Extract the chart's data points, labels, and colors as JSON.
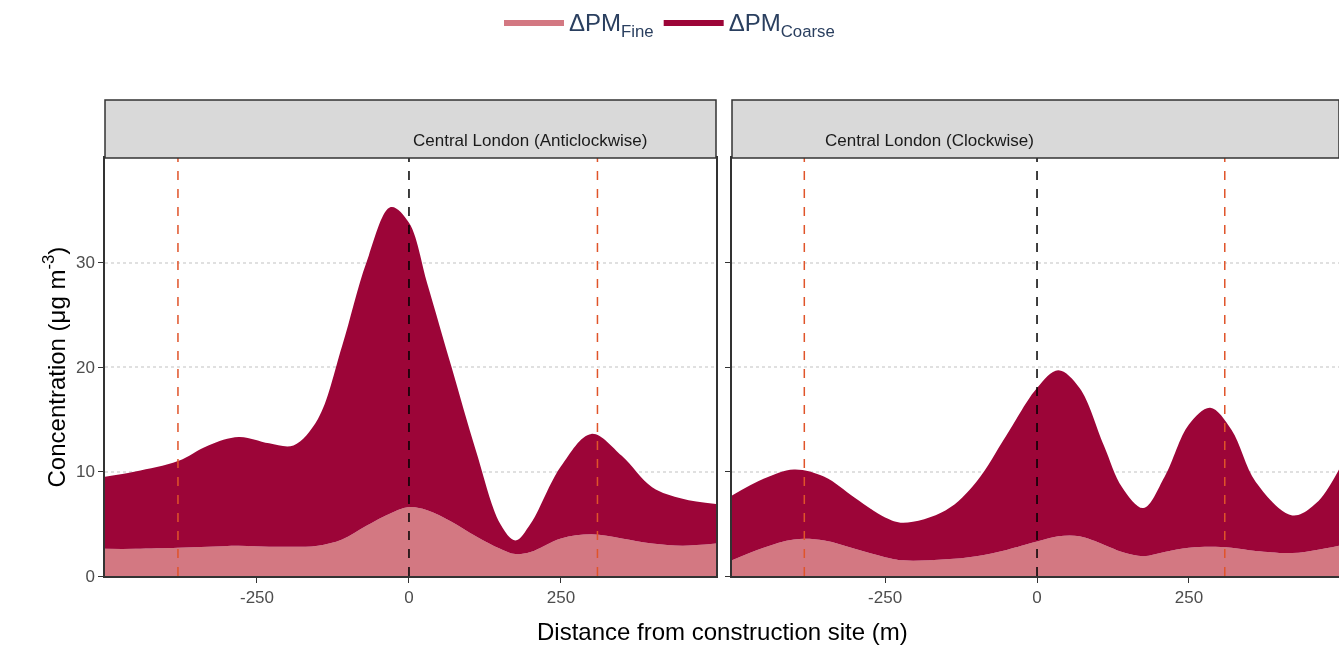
{
  "chart_data": [
    {
      "type": "area",
      "title": "Central London (Anticlockwise)",
      "xlabel": "Distance from construction site (m)",
      "ylabel": "Concentration (μg m$^{-3}$)",
      "stacked": true,
      "legend": "top",
      "grid": "y",
      "x": [
        -500,
        -450,
        -380,
        -330,
        -280,
        -230,
        -190,
        -150,
        -110,
        -70,
        -30,
        0,
        30,
        70,
        110,
        150,
        175,
        200,
        250,
        300,
        350,
        400,
        450,
        505
      ],
      "series": [
        {
          "name": "ΔPM$_{Fine}$",
          "color": "#d37882",
          "values": [
            2.6,
            2.6,
            2.7,
            2.8,
            2.9,
            2.8,
            2.8,
            2.9,
            3.5,
            4.8,
            6.0,
            6.6,
            6.3,
            5.2,
            3.8,
            2.6,
            2.1,
            2.3,
            3.6,
            4.0,
            3.6,
            3.1,
            2.9,
            3.1
          ]
        },
        {
          "name": "ΔPM$_{Coarse}$",
          "color": "#9c0538",
          "values": [
            6.9,
            7.4,
            8.3,
            9.7,
            10.4,
            9.9,
            9.7,
            12.1,
            18.5,
            25.2,
            29.3,
            27.2,
            21.7,
            14.8,
            8.2,
            2.4,
            1.3,
            2.7,
            6.9,
            9.6,
            7.9,
            5.4,
            4.5,
            3.8
          ]
        }
      ],
      "xlim": [
        -500,
        505
      ],
      "xticks": [
        -250,
        0,
        250
      ],
      "ylim": [
        0,
        40
      ],
      "yticks": [
        0,
        10,
        20,
        30
      ],
      "ref_lines": [
        {
          "axis": "x",
          "value": -380,
          "color": "#e0542a",
          "line_style": "dashed"
        },
        {
          "axis": "x",
          "value": 0,
          "color": "#000000",
          "line_style": "dashed"
        },
        {
          "axis": "x",
          "value": 310,
          "color": "#e0542a",
          "line_style": "dashed"
        }
      ]
    },
    {
      "type": "area",
      "title": "Central London (Clockwise)",
      "stacked": true,
      "legend": "top",
      "grid": "y",
      "tick_labels": "x",
      "x": [
        -502,
        -450,
        -400,
        -350,
        -300,
        -250,
        -220,
        -150,
        -100,
        -50,
        0,
        35,
        70,
        110,
        140,
        175,
        210,
        250,
        285,
        320,
        360,
        420,
        460,
        497
      ],
      "series": [
        {
          "name": "ΔPM$_{Fine}$",
          "color": "#d37882",
          "values": [
            1.5,
            2.7,
            3.5,
            3.4,
            2.6,
            1.8,
            1.5,
            1.6,
            1.9,
            2.5,
            3.3,
            3.8,
            3.8,
            3.0,
            2.3,
            1.9,
            2.3,
            2.7,
            2.8,
            2.7,
            2.4,
            2.2,
            2.5,
            2.9
          ]
        },
        {
          "name": "ΔPM$_{Coarse}$",
          "color": "#9c0538",
          "values": [
            6.2,
            6.6,
            6.7,
            6.1,
            4.9,
            3.8,
            3.6,
            4.7,
            7.1,
            11.0,
            14.7,
            15.9,
            14.2,
            9.5,
            6.2,
            4.6,
            7.2,
            11.8,
            13.3,
            11.3,
            6.6,
            3.6,
            4.5,
            7.3
          ]
        }
      ],
      "xlim": [
        -502,
        497
      ],
      "xticks": [
        -250,
        0,
        250
      ],
      "ylim": [
        0,
        40
      ],
      "yticks": [
        0,
        10,
        20,
        30
      ],
      "ref_lines": [
        {
          "axis": "x",
          "value": -383,
          "color": "#e0542a",
          "line_style": "dashed"
        },
        {
          "axis": "x",
          "value": 0,
          "color": "#000000",
          "line_style": "dashed"
        },
        {
          "axis": "x",
          "value": 309,
          "color": "#e0542a",
          "line_style": "dashed"
        }
      ]
    }
  ]
}
